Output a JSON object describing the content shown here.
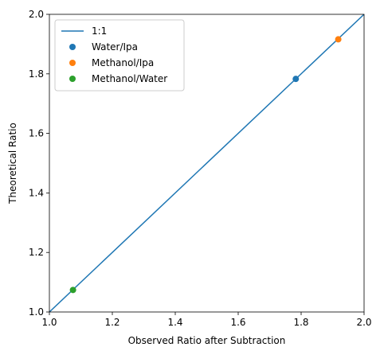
{
  "chart_data": {
    "type": "scatter",
    "xlabel": "Observed Ratio after Subtraction",
    "ylabel": "Theoretical Ratio",
    "xlim": [
      1.0,
      2.0
    ],
    "ylim": [
      1.0,
      2.0
    ],
    "xticks": [
      "1.0",
      "1.2",
      "1.4",
      "1.6",
      "1.8",
      "2.0"
    ],
    "yticks": [
      "1.0",
      "1.2",
      "1.4",
      "1.6",
      "1.8",
      "2.0"
    ],
    "grid": false,
    "legend_position": "top-left",
    "reference_line": {
      "label": "1:1",
      "x": [
        1.0,
        2.0
      ],
      "y": [
        1.0,
        2.0
      ],
      "color": "#1f77b4"
    },
    "series": [
      {
        "name": "Water/Ipa",
        "color": "#1f77b4",
        "points": [
          {
            "x": 1.783,
            "y": 1.783
          }
        ]
      },
      {
        "name": "Methanol/Ipa",
        "color": "#ff7f0e",
        "points": [
          {
            "x": 1.918,
            "y": 1.916
          }
        ]
      },
      {
        "name": "Methanol/Water",
        "color": "#2ca02c",
        "points": [
          {
            "x": 1.075,
            "y": 1.074
          }
        ]
      }
    ]
  }
}
